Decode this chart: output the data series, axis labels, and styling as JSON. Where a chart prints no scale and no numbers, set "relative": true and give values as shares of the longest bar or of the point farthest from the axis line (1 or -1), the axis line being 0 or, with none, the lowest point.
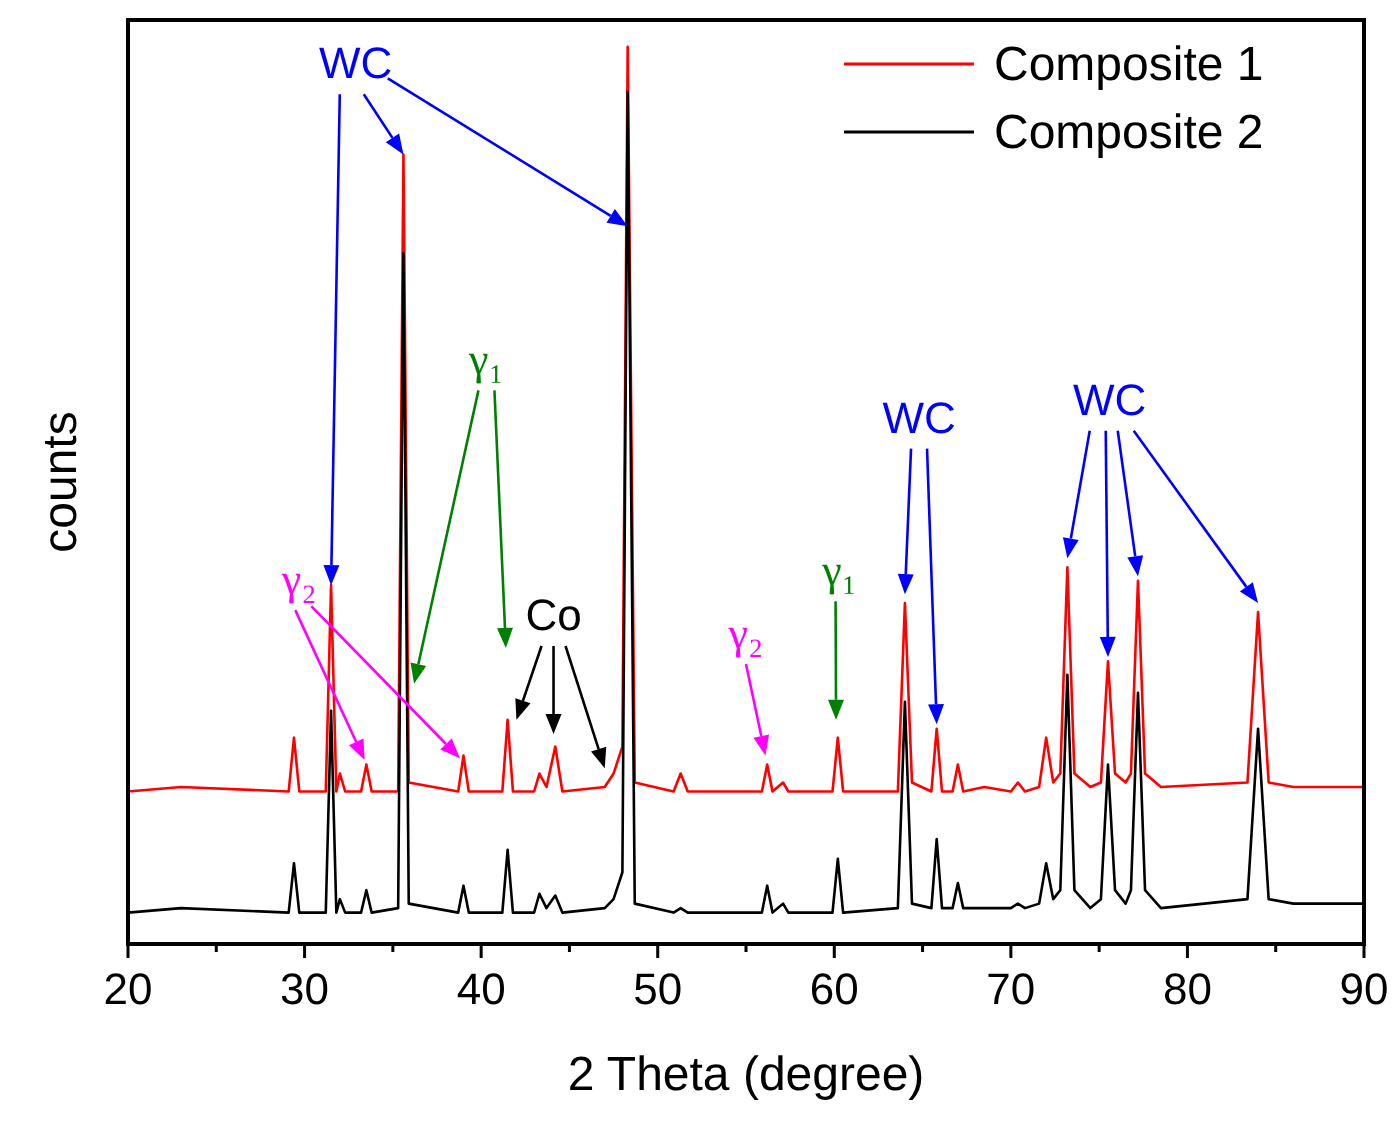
{
  "chart_data": {
    "type": "line",
    "relative": true,
    "xlabel": "2 Theta (degree)",
    "ylabel": "counts",
    "tick_labels": "x",
    "legend": "top right",
    "grid": false,
    "line_style": "solid",
    "xlim": [
      20,
      90
    ],
    "xticks": [
      20,
      {
        "value": 25,
        "label": null
      },
      30,
      {
        "value": 35,
        "label": null
      },
      40,
      {
        "value": 45,
        "label": null
      },
      50,
      {
        "value": 55,
        "label": null
      },
      60,
      {
        "value": 65,
        "label": null
      },
      70,
      {
        "value": 75,
        "label": null
      },
      80,
      {
        "value": 85,
        "label": null
      },
      90
    ],
    "x": [
      20,
      23,
      29.1,
      29.4,
      29.7,
      31.2,
      31.5,
      31.8,
      32.0,
      32.3,
      33.2,
      33.5,
      33.8,
      35.3,
      35.6,
      35.9,
      38.7,
      39.0,
      39.3,
      41.2,
      41.5,
      41.8,
      43.0,
      43.3,
      43.7,
      44.2,
      44.6,
      47.0,
      47.5,
      48.0,
      48.3,
      48.7,
      50.9,
      51.3,
      51.7,
      55.9,
      56.2,
      56.5,
      57.1,
      57.4,
      59.9,
      60.2,
      60.5,
      63.6,
      64.0,
      64.4,
      65.5,
      65.8,
      66.1,
      66.7,
      67.0,
      67.3,
      68.5,
      70.0,
      70.4,
      70.8,
      71.6,
      72.0,
      72.4,
      72.8,
      73.2,
      73.6,
      74.5,
      75.1,
      75.5,
      75.9,
      76.5,
      76.8,
      77.2,
      77.6,
      78.5,
      83.4,
      84.0,
      84.6,
      86,
      90
    ],
    "series": [
      {
        "name": "Composite 1",
        "color": "#ff0000",
        "values": [
          0.17,
          0.175,
          0.17,
          0.23,
          0.17,
          0.17,
          0.4,
          0.17,
          0.19,
          0.17,
          0.17,
          0.2,
          0.17,
          0.17,
          0.88,
          0.18,
          0.17,
          0.21,
          0.17,
          0.17,
          0.25,
          0.17,
          0.17,
          0.19,
          0.175,
          0.22,
          0.17,
          0.175,
          0.19,
          0.22,
          1.0,
          0.18,
          0.17,
          0.19,
          0.17,
          0.17,
          0.2,
          0.17,
          0.18,
          0.17,
          0.17,
          0.23,
          0.17,
          0.17,
          0.38,
          0.18,
          0.17,
          0.24,
          0.17,
          0.17,
          0.2,
          0.17,
          0.175,
          0.17,
          0.18,
          0.17,
          0.175,
          0.23,
          0.18,
          0.19,
          0.42,
          0.19,
          0.175,
          0.18,
          0.315,
          0.19,
          0.18,
          0.19,
          0.405,
          0.19,
          0.175,
          0.18,
          0.37,
          0.18,
          0.175,
          0.175
        ]
      },
      {
        "name": "Composite 2",
        "color": "#000000",
        "values": [
          0.035,
          0.04,
          0.035,
          0.09,
          0.035,
          0.035,
          0.26,
          0.035,
          0.05,
          0.035,
          0.035,
          0.06,
          0.035,
          0.04,
          0.77,
          0.045,
          0.035,
          0.065,
          0.035,
          0.035,
          0.105,
          0.035,
          0.035,
          0.056,
          0.04,
          0.054,
          0.035,
          0.04,
          0.05,
          0.08,
          0.95,
          0.045,
          0.035,
          0.04,
          0.035,
          0.035,
          0.065,
          0.035,
          0.045,
          0.035,
          0.035,
          0.095,
          0.035,
          0.04,
          0.27,
          0.045,
          0.04,
          0.117,
          0.04,
          0.04,
          0.068,
          0.04,
          0.04,
          0.04,
          0.045,
          0.04,
          0.045,
          0.09,
          0.05,
          0.06,
          0.3,
          0.06,
          0.04,
          0.05,
          0.2,
          0.06,
          0.045,
          0.06,
          0.28,
          0.06,
          0.04,
          0.05,
          0.24,
          0.05,
          0.045,
          0.045
        ]
      }
    ],
    "annotations": [
      "WC",
      "γ₂",
      "γ₁",
      "Co",
      "γ₂",
      "γ₁",
      "WC",
      "WC"
    ]
  }
}
